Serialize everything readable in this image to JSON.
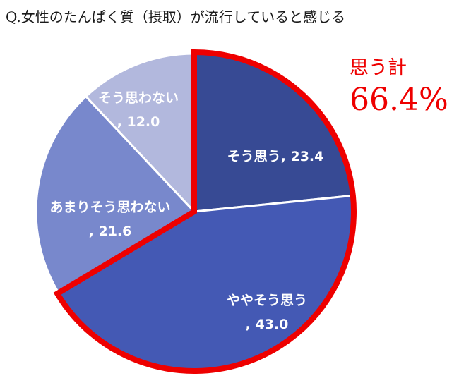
{
  "title": "Q.女性のたんぱく質（摂取）が流行していると感じる",
  "summary": {
    "label": "思う計",
    "value": "66.4%",
    "color": "#ee0000"
  },
  "chart_data": {
    "type": "pie",
    "title": "Q.女性のたんぱく質（摂取）が流行していると感じる",
    "unit": "%",
    "slices": [
      {
        "label": "そう思う",
        "value": 23.4,
        "display": "そう思う, 23.4",
        "color": "#374a94"
      },
      {
        "label": "ややそう思う",
        "value": 43.0,
        "display": "ややそう思う, 43.0",
        "color": "#4459b4"
      },
      {
        "label": "あまりそう思わない",
        "value": 21.6,
        "display": "あまりそう思わない, 21.6",
        "color": "#7888cc"
      },
      {
        "label": "そう思わない",
        "value": 12.0,
        "display": "そう思わない, 12.0",
        "color": "#b2b8dd"
      }
    ],
    "highlight": {
      "slices": [
        "そう思う",
        "ややそう思う"
      ],
      "outline_color": "#ee0000"
    }
  }
}
